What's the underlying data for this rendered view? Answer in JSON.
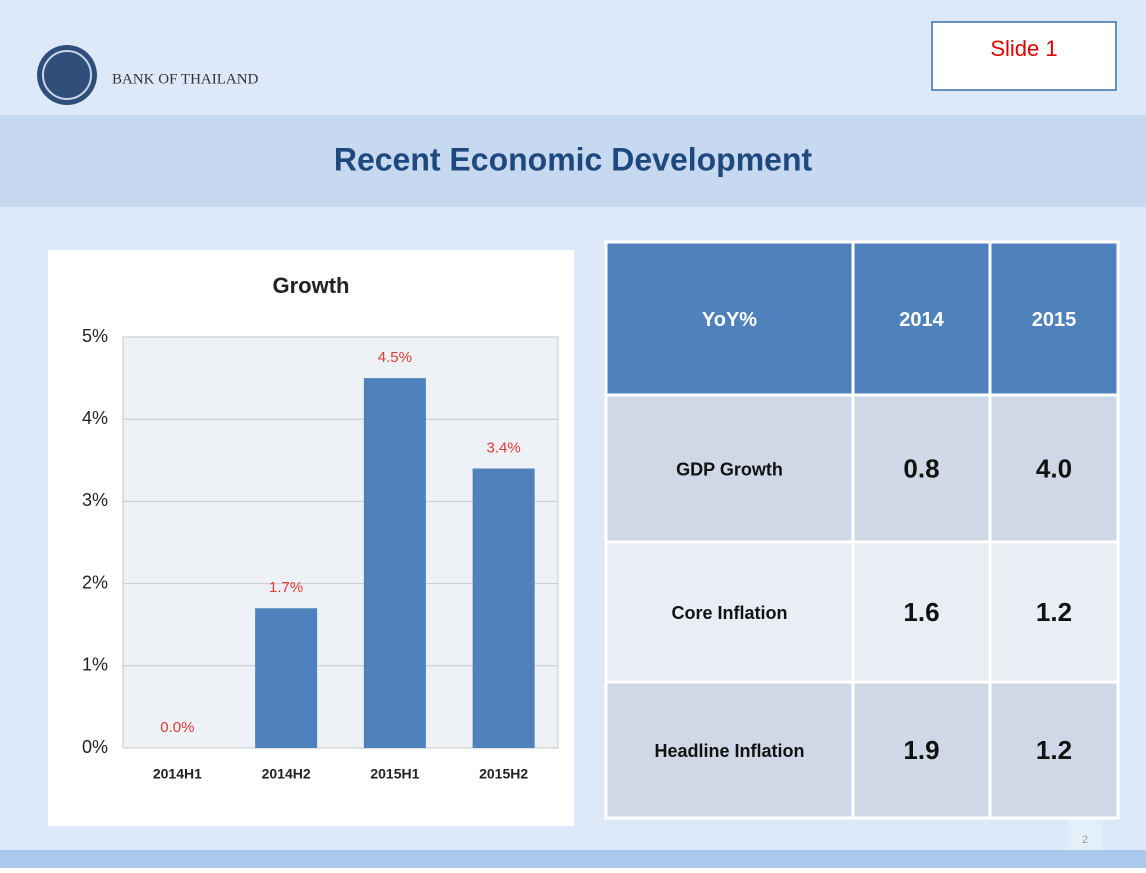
{
  "header": {
    "logo_text": "BANK OF THAILAND",
    "slide_label": "Slide 1",
    "title": "Recent Economic Development"
  },
  "chart_data": {
    "type": "bar",
    "title": "Growth",
    "categories": [
      "2014H1",
      "2014H2",
      "2015H1",
      "2015H2"
    ],
    "values": [
      0,
      1.7,
      4.5,
      3.4
    ],
    "value_labels": [
      "0.0%",
      "1.7%",
      "4.5%",
      "3.4%"
    ],
    "color": "#4f81bd",
    "label_color": "#e03c31",
    "ylim": [
      0,
      5
    ],
    "yticks": [
      {
        "value": 0,
        "label": "0%"
      },
      {
        "value": 1,
        "label": "1%"
      },
      {
        "value": 2,
        "label": "2%"
      },
      {
        "value": 3,
        "label": "3%"
      },
      {
        "value": 4,
        "label": "4%"
      },
      {
        "value": 5,
        "label": "5%"
      }
    ],
    "grid": true
  },
  "table": {
    "header": [
      "YoY%",
      "2014",
      "2015"
    ],
    "rows": [
      [
        "GDP Growth",
        "0.8",
        "4.0"
      ],
      [
        "Core Inflation",
        "1.6",
        "1.2"
      ],
      [
        "Headline Inflation",
        "1.9",
        "1.2"
      ]
    ]
  },
  "page_number": "2"
}
